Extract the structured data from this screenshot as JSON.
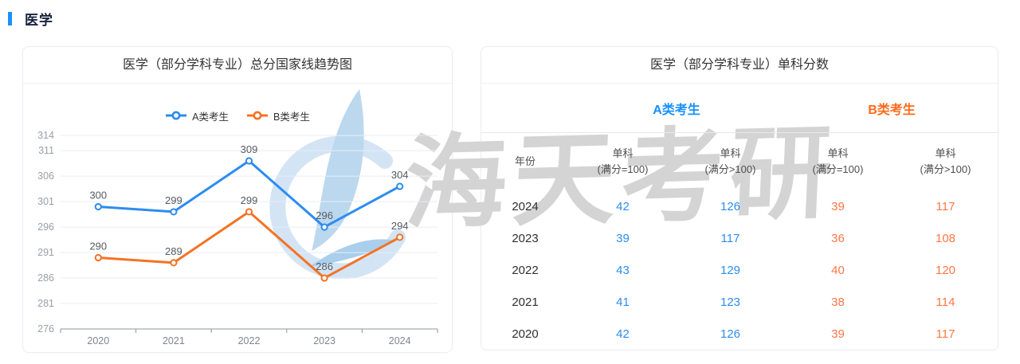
{
  "page": {
    "title": "医学",
    "accent_color": "#1890ff"
  },
  "watermark": {
    "text": "海天考研",
    "logo": "sail-logo",
    "text_color": "#d4d4d4",
    "logo_color": "#bcd8ef"
  },
  "chart_card": {
    "title": "医学（部分学科专业）总分国家线趋势图"
  },
  "chart_data": {
    "type": "line",
    "title": "医学（部分学科专业）总分国家线趋势图",
    "x": [
      "2020",
      "2021",
      "2022",
      "2023",
      "2024"
    ],
    "series": [
      {
        "name": "A类考生",
        "color": "#2d8cf0",
        "values": [
          300,
          299,
          309,
          296,
          304
        ]
      },
      {
        "name": "B类考生",
        "color": "#f57224",
        "values": [
          290,
          289,
          299,
          286,
          294
        ]
      }
    ],
    "y_ticks": [
      276,
      281,
      286,
      291,
      296,
      301,
      306,
      311,
      314
    ],
    "ylim": [
      276,
      314
    ],
    "grid": true,
    "legend_position": "top",
    "xlabel": "",
    "ylabel": ""
  },
  "table_card": {
    "title": "医学（部分学科专业）单科分数",
    "groups": [
      {
        "label": "A类考生",
        "color": "#1890ff"
      },
      {
        "label": "B类考生",
        "color": "#ff6a1c"
      }
    ],
    "value_colors": {
      "a": "#2d8cf0",
      "b": "#ff7746"
    },
    "columns": [
      {
        "t": "年份",
        "s": ""
      },
      {
        "t": "单科",
        "s": "(满分=100)"
      },
      {
        "t": "单科",
        "s": "(满分>100)"
      },
      {
        "t": "单科",
        "s": "(满分=100)"
      },
      {
        "t": "单科",
        "s": "(满分>100)"
      }
    ],
    "rows": [
      {
        "year": "2024",
        "values": [
          42,
          126,
          39,
          117
        ]
      },
      {
        "year": "2023",
        "values": [
          39,
          117,
          36,
          108
        ]
      },
      {
        "year": "2022",
        "values": [
          43,
          129,
          40,
          120
        ]
      },
      {
        "year": "2021",
        "values": [
          41,
          123,
          38,
          114
        ]
      },
      {
        "year": "2020",
        "values": [
          42,
          126,
          39,
          117
        ]
      }
    ]
  }
}
